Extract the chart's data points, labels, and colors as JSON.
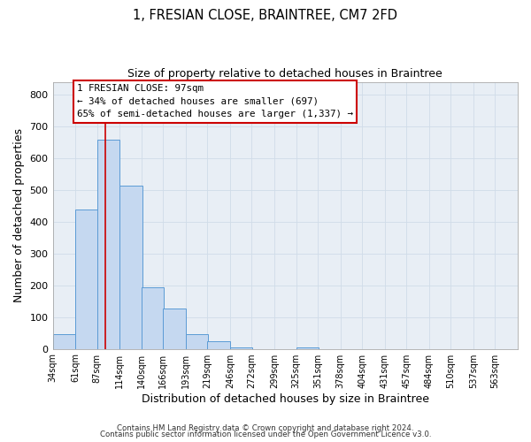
{
  "title": "1, FRESIAN CLOSE, BRAINTREE, CM7 2FD",
  "subtitle": "Size of property relative to detached houses in Braintree",
  "xlabel": "Distribution of detached houses by size in Braintree",
  "ylabel": "Number of detached properties",
  "bar_left_edges": [
    34,
    61,
    87,
    114,
    140,
    166,
    193,
    219,
    246,
    272,
    299,
    325
  ],
  "bar_heights": [
    47,
    440,
    660,
    515,
    193,
    127,
    47,
    25,
    5,
    0,
    0,
    5
  ],
  "bin_width": 27,
  "bar_color": "#c5d8f0",
  "bar_edge_color": "#5b9bd5",
  "vline_x": 97,
  "vline_color": "#cc0000",
  "ylim": [
    0,
    840
  ],
  "xlim": [
    34,
    590
  ],
  "xtick_labels": [
    "34sqm",
    "61sqm",
    "87sqm",
    "114sqm",
    "140sqm",
    "166sqm",
    "193sqm",
    "219sqm",
    "246sqm",
    "272sqm",
    "299sqm",
    "325sqm",
    "351sqm",
    "378sqm",
    "404sqm",
    "431sqm",
    "457sqm",
    "484sqm",
    "510sqm",
    "537sqm",
    "563sqm"
  ],
  "xtick_positions": [
    34,
    61,
    87,
    114,
    140,
    166,
    193,
    219,
    246,
    272,
    299,
    325,
    351,
    378,
    404,
    431,
    457,
    484,
    510,
    537,
    563
  ],
  "ytick_positions": [
    0,
    100,
    200,
    300,
    400,
    500,
    600,
    700,
    800
  ],
  "annotation_text_line1": "1 FRESIAN CLOSE: 97sqm",
  "annotation_text_line2": "← 34% of detached houses are smaller (697)",
  "annotation_text_line3": "65% of semi-detached houses are larger (1,337) →",
  "grid_color": "#d0dce8",
  "background_color": "#e8eef5",
  "plot_bg_color": "#e8eef5",
  "footer_line1": "Contains HM Land Registry data © Crown copyright and database right 2024.",
  "footer_line2": "Contains public sector information licensed under the Open Government Licence v3.0."
}
